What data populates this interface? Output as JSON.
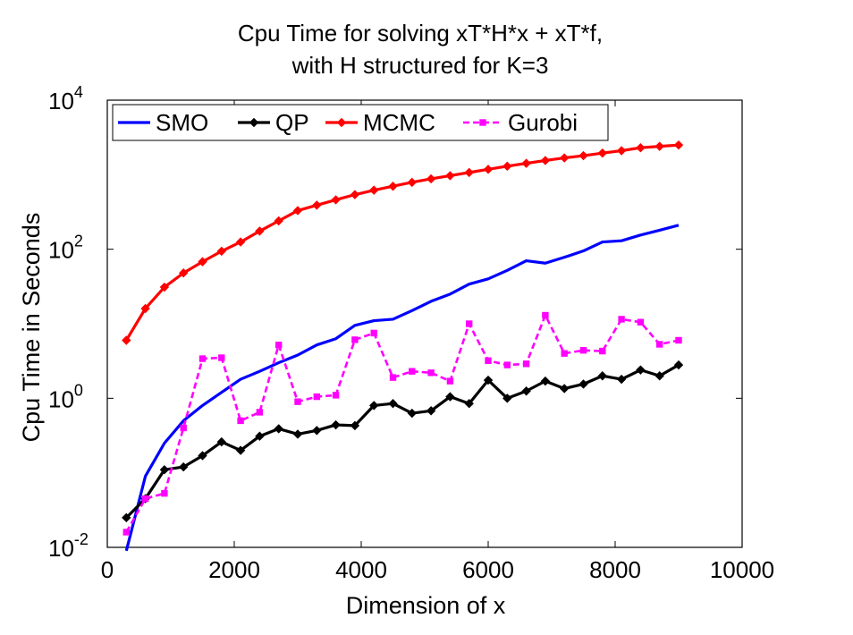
{
  "chart_data": {
    "type": "line",
    "title": [
      "Cpu Time for solving xT*H*x + xT*f,",
      "with H structured for K=3"
    ],
    "xlabel": "Dimension of x",
    "ylabel": "Cpu Time in Seconds",
    "xlim": [
      0,
      10000
    ],
    "ylim": [
      0.01,
      10000
    ],
    "yscale": "log",
    "x_ticks": [
      0,
      2000,
      4000,
      6000,
      8000,
      10000
    ],
    "x_tick_labels": [
      "0",
      "2000",
      "4000",
      "6000",
      "8000",
      "10000"
    ],
    "y_ticks": [
      {
        "value": 0.01,
        "base": "10",
        "exp": "-2"
      },
      {
        "value": 1,
        "base": "10",
        "exp": "0"
      },
      {
        "value": 100,
        "base": "10",
        "exp": "2"
      },
      {
        "value": 10000,
        "base": "10",
        "exp": "4"
      }
    ],
    "grid": false,
    "legend_position": "top-left",
    "x": [
      300,
      600,
      900,
      1200,
      1500,
      1800,
      2100,
      2400,
      2700,
      3000,
      3300,
      3600,
      3900,
      4200,
      4500,
      4800,
      5100,
      5400,
      5700,
      6000,
      6300,
      6600,
      6900,
      7200,
      7500,
      7800,
      8100,
      8400,
      8700,
      9000
    ],
    "series": [
      {
        "name": "SMO",
        "color": "#0000ff",
        "style": "solid",
        "marker": "none",
        "values": [
          0.009,
          0.09,
          0.25,
          0.5,
          0.8,
          1.2,
          1.8,
          2.3,
          3.0,
          3.8,
          5.2,
          6.3,
          9.5,
          11,
          11.5,
          15,
          20,
          25,
          34,
          40,
          52,
          70,
          65,
          78,
          95,
          125,
          130,
          155,
          180,
          210
        ]
      },
      {
        "name": "QP",
        "color": "#000000",
        "style": "solid",
        "marker": "diamond",
        "values": [
          0.025,
          0.045,
          0.11,
          0.12,
          0.17,
          0.26,
          0.2,
          0.31,
          0.39,
          0.33,
          0.37,
          0.44,
          0.43,
          0.8,
          0.85,
          0.63,
          0.68,
          1.05,
          0.85,
          1.75,
          1.0,
          1.25,
          1.7,
          1.35,
          1.55,
          2.0,
          1.8,
          2.4,
          2.0,
          2.8
        ]
      },
      {
        "name": "MCMC",
        "color": "#ff0000",
        "style": "solid",
        "marker": "diamond",
        "values": [
          6,
          16,
          31,
          48,
          68,
          94,
          125,
          175,
          240,
          330,
          390,
          460,
          540,
          620,
          700,
          790,
          880,
          970,
          1070,
          1180,
          1300,
          1420,
          1550,
          1680,
          1800,
          1950,
          2100,
          2300,
          2400,
          2500
        ]
      },
      {
        "name": "Gurobi",
        "color": "#ff00ff",
        "style": "dashed",
        "marker": "square",
        "values": [
          0.016,
          0.045,
          0.053,
          0.4,
          3.4,
          3.5,
          0.5,
          0.65,
          5.2,
          0.9,
          1.05,
          1.1,
          6.1,
          7.5,
          1.9,
          2.3,
          2.2,
          1.7,
          10,
          3.2,
          2.8,
          2.9,
          13,
          4.0,
          4.4,
          4.3,
          11.5,
          10.5,
          5.3,
          6.0
        ]
      }
    ]
  }
}
